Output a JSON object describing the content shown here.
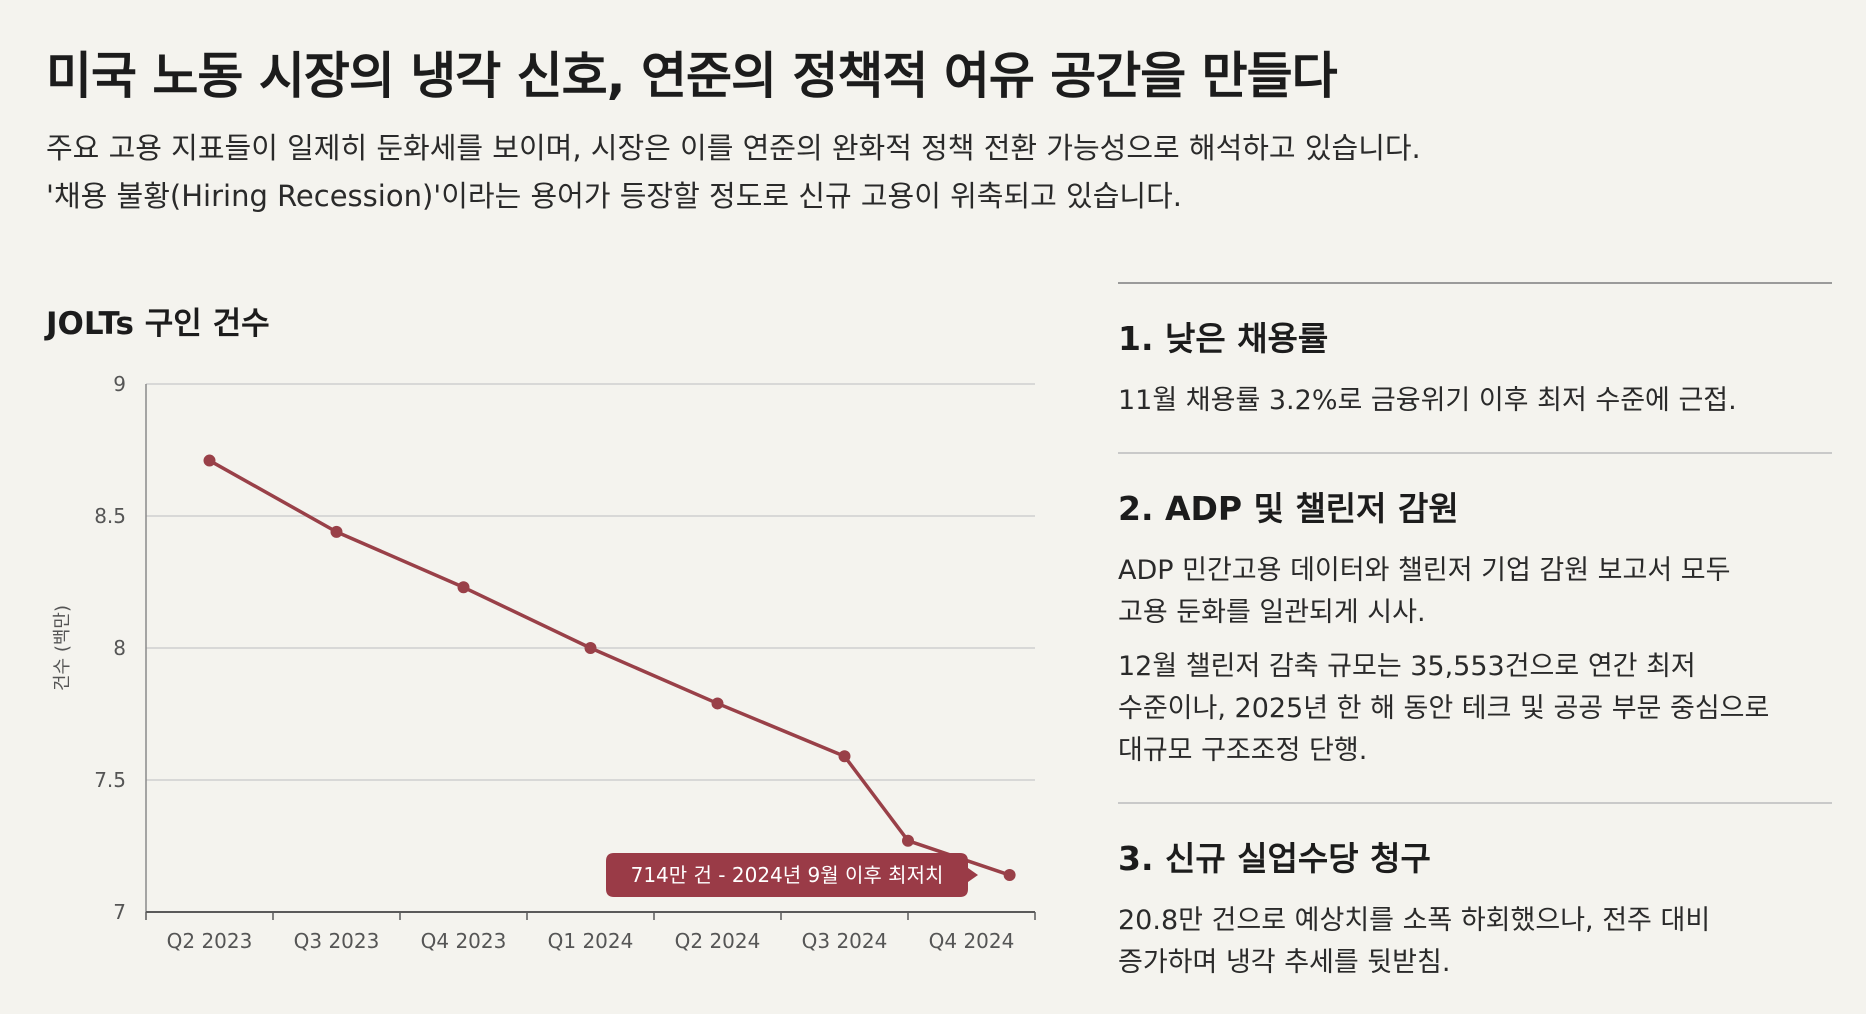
{
  "header": {
    "title": "미국 노동 시장의 냉각 신호, 연준의 정책적 여유 공간을 만들다",
    "subtitle_line1": "주요 고용 지표들이 일제히 둔화세를 보이며, 시장은 이를 연준의 완화적 정책 전환 가능성으로 해석하고 있습니다.",
    "subtitle_line2": "'채용 불황(Hiring Recession)'이라는 용어가 등장할 정도로 신규 고용이 위축되고 있습니다."
  },
  "chart_data": {
    "type": "line",
    "title": "JOLTs 구인 건수",
    "xlabel": "",
    "ylabel": "건수 (백만)",
    "ylim": [
      7,
      9
    ],
    "yticks": [
      7,
      7.5,
      8,
      8.5,
      9
    ],
    "grid": true,
    "categories": [
      "Q2 2023",
      "Q3 2023",
      "Q4 2023",
      "Q1 2024",
      "Q2 2024",
      "Q3 2024",
      "Q4 2024"
    ],
    "series": [
      {
        "x": [
          0,
          1,
          2,
          3,
          4,
          5,
          5.5,
          6.3
        ],
        "values": [
          8.71,
          8.44,
          8.23,
          8.0,
          7.79,
          7.59,
          7.27,
          7.14
        ]
      }
    ],
    "annotation": {
      "text": "714만 건 - 2024년 9월 이후 최저치",
      "value": 7.14
    },
    "line_color": "#994048",
    "callout_color": "#9a3b47"
  },
  "panel": {
    "items": [
      {
        "heading": "1. 낮은 채용률",
        "paragraphs": [
          "11월 채용률 3.2%로 금융위기 이후 최저 수준에 근접."
        ]
      },
      {
        "heading": "2. ADP 및 챌린저 감원",
        "paragraphs": [
          "ADP 민간고용 데이터와 챌린저 기업 감원 보고서 모두\n고용 둔화를 일관되게 시사.",
          "12월 챌린저 감축 규모는 35,553건으로 연간 최저\n수준이나, 2025년 한 해 동안 테크 및 공공 부문 중심으로\n대규모 구조조정 단행."
        ]
      },
      {
        "heading": "3. 신규 실업수당 청구",
        "paragraphs": [
          "20.8만 건으로 예상치를 소폭 하회했으나, 전주 대비\n증가하며 냉각 추세를 뒷받침."
        ]
      }
    ]
  }
}
